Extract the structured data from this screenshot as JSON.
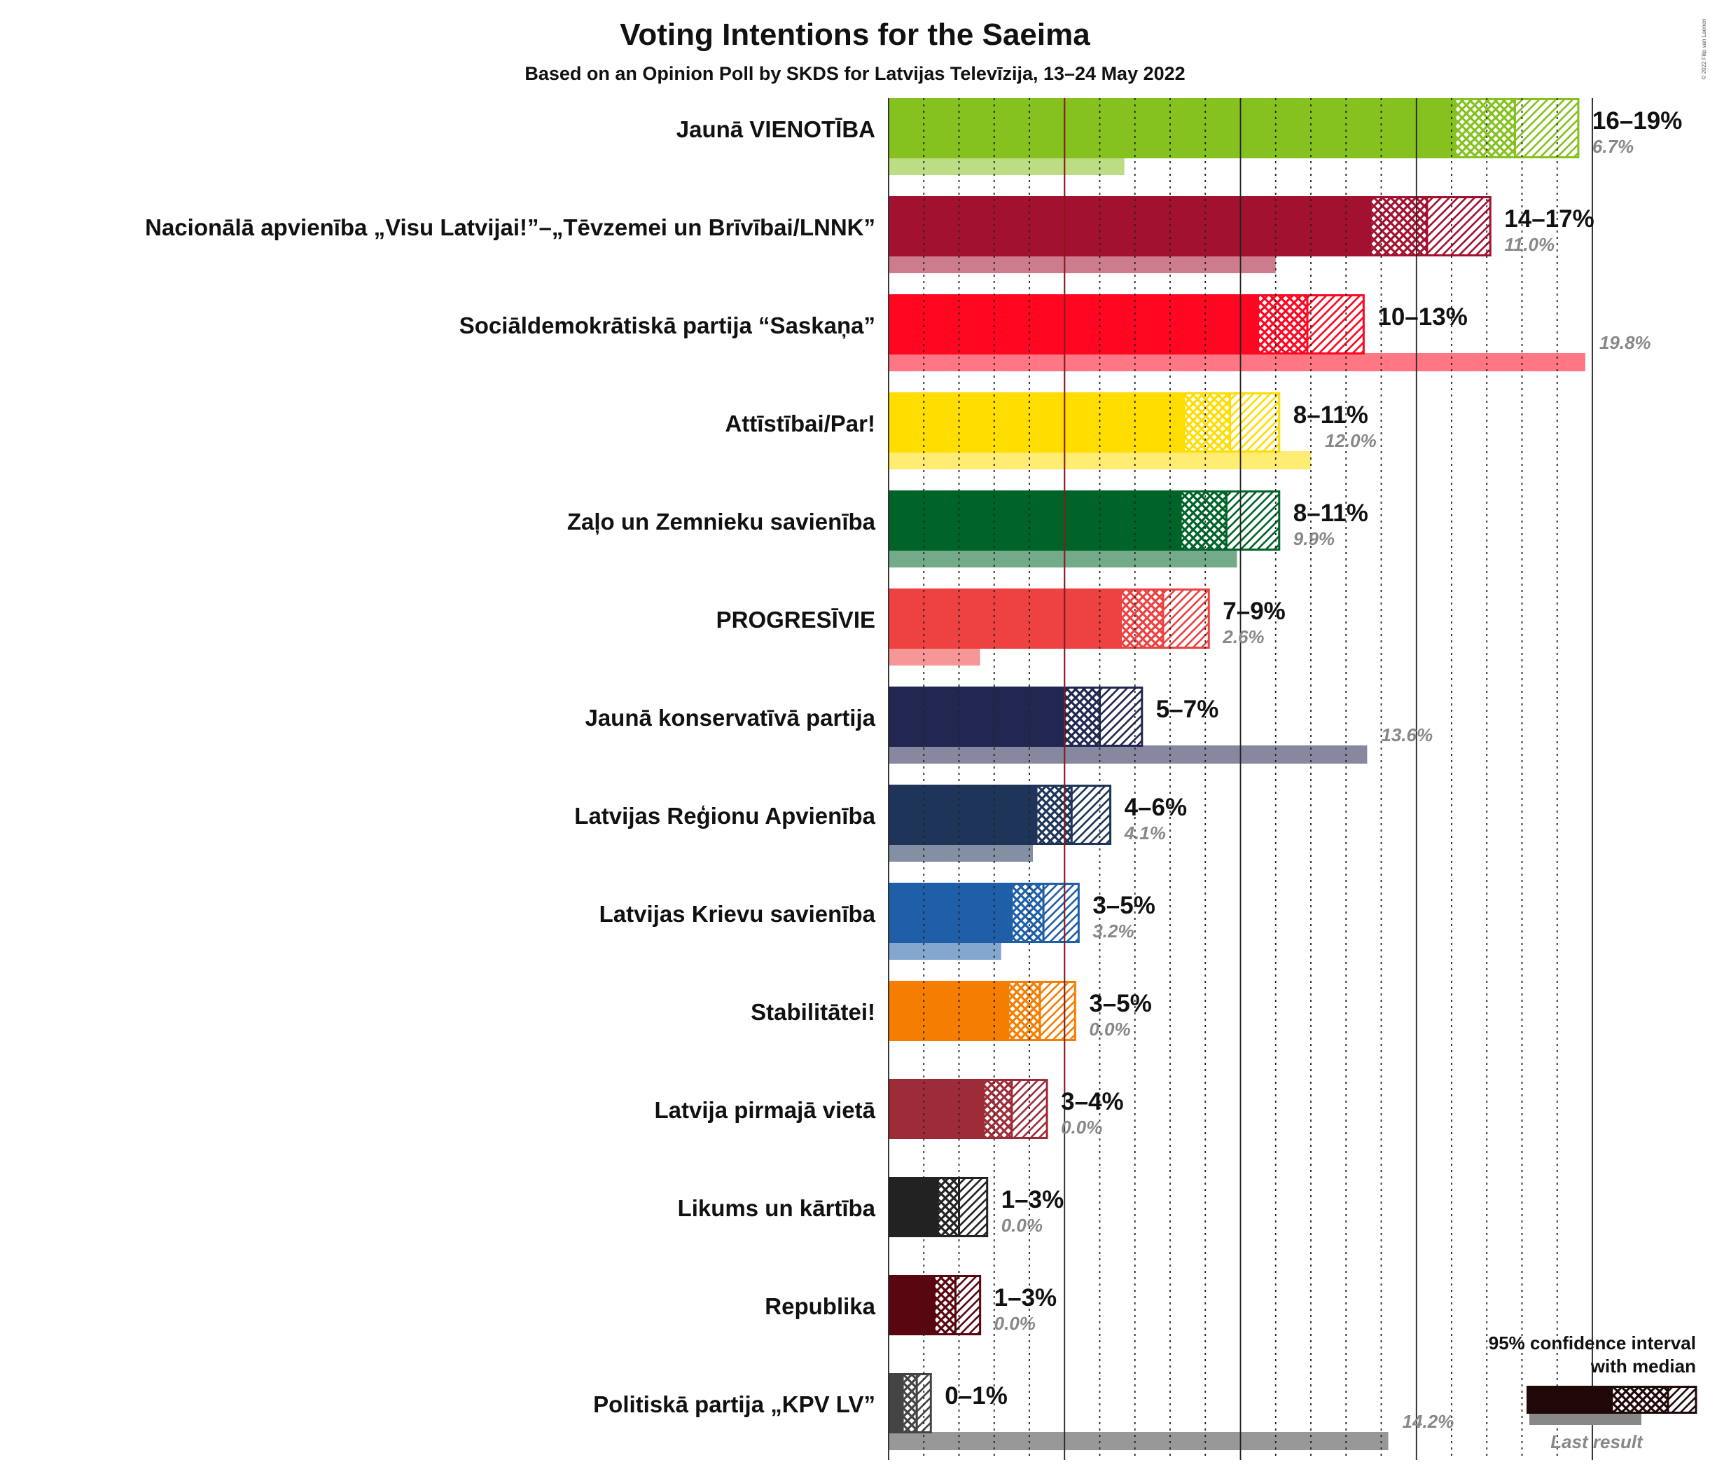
{
  "chart_data": {
    "type": "bar",
    "title": "Voting Intentions for the Saeima",
    "subtitle": "Based on an Opinion Poll by SKDS for Latvijas Televīzija, 13–24 May 2022",
    "copyright": "© 2022 Filip van Laenen",
    "xlabel": "",
    "ylabel": "",
    "xlim": [
      0,
      21
    ],
    "threshold": 5,
    "series": [
      {
        "name": "Jaunā VIENOTĪBA",
        "color": "#85C11F",
        "low": 16.1,
        "median": 17.8,
        "high": 19.6,
        "range_label": "16–19%",
        "last": 6.7,
        "last_label": "6.7%"
      },
      {
        "name": "Nacionālā apvienība „Visu Latvijai!”–„Tēvzemei un Brīvībai/LNNK”",
        "color": "#A31130",
        "low": 13.7,
        "median": 15.3,
        "high": 17.1,
        "range_label": "14–17%",
        "last": 11.0,
        "last_label": "11.0%"
      },
      {
        "name": "Sociāldemokrātiskā partija “Saskaņa”",
        "color": "#FF0621",
        "low": 10.5,
        "median": 11.9,
        "high": 13.5,
        "range_label": "10–13%",
        "last": 19.8,
        "last_label": "19.8%"
      },
      {
        "name": "Attīstībai/Par!",
        "color": "#FFDD00",
        "low": 8.4,
        "median": 9.7,
        "high": 11.1,
        "range_label": "8–11%",
        "last": 12.0,
        "last_label": "12.0%"
      },
      {
        "name": "Zaļo un Zemnieku savienība",
        "color": "#006429",
        "low": 8.3,
        "median": 9.6,
        "high": 11.1,
        "range_label": "8–11%",
        "last": 9.9,
        "last_label": "9.9%"
      },
      {
        "name": "PROGRESĪVIE",
        "color": "#EE4141",
        "low": 6.6,
        "median": 7.8,
        "high": 9.1,
        "range_label": "7–9%",
        "last": 2.6,
        "last_label": "2.6%"
      },
      {
        "name": "Jaunā konservatīvā partija",
        "color": "#222751",
        "low": 5.0,
        "median": 6.0,
        "high": 7.2,
        "range_label": "5–7%",
        "last": 13.6,
        "last_label": "13.6%"
      },
      {
        "name": "Latvijas Reģionu Apvienība",
        "color": "#1E3458",
        "low": 4.2,
        "median": 5.2,
        "high": 6.3,
        "range_label": "4–6%",
        "last": 4.1,
        "last_label": "4.1%"
      },
      {
        "name": "Latvijas Krievu savienība",
        "color": "#1F5FA8",
        "low": 3.5,
        "median": 4.4,
        "high": 5.4,
        "range_label": "3–5%",
        "last": 3.2,
        "last_label": "3.2%"
      },
      {
        "name": "Stabilitātei!",
        "color": "#F57E00",
        "low": 3.4,
        "median": 4.3,
        "high": 5.3,
        "range_label": "3–5%",
        "last": 0.0,
        "last_label": "0.0%"
      },
      {
        "name": "Latvija pirmajā vietā",
        "color": "#9E2B38",
        "low": 2.7,
        "median": 3.5,
        "high": 4.5,
        "range_label": "3–4%",
        "last": 0.0,
        "last_label": "0.0%"
      },
      {
        "name": "Likums un kārtība",
        "color": "#222222",
        "low": 1.4,
        "median": 2.0,
        "high": 2.8,
        "range_label": "1–3%",
        "last": 0.0,
        "last_label": "0.0%"
      },
      {
        "name": "Republika",
        "color": "#5A0610",
        "low": 1.3,
        "median": 1.9,
        "high": 2.6,
        "range_label": "1–3%",
        "last": 0.0,
        "last_label": "0.0%"
      },
      {
        "name": "Politiskā partija „KPV LV”",
        "color": "#444444",
        "low": 0.4,
        "median": 0.8,
        "high": 1.2,
        "range_label": "0–1%",
        "last": 14.2,
        "last_label": "14.2%"
      }
    ],
    "legend": {
      "title_line1": "95% confidence interval",
      "title_line2": "with median",
      "last_result": "Last result",
      "color": "#200809",
      "placement": "bottom-right"
    }
  }
}
